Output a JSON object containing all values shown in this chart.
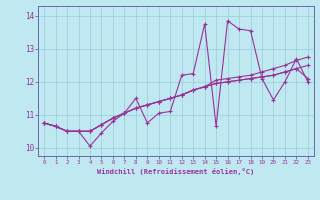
{
  "xlabel": "Windchill (Refroidissement éolien,°C)",
  "background_color": "#bfe8f0",
  "grid_color": "#99ccd8",
  "line_color": "#993399",
  "spine_color": "#6666aa",
  "xlim": [
    -0.5,
    23.5
  ],
  "ylim": [
    9.75,
    14.3
  ],
  "yticks": [
    10,
    11,
    12,
    13,
    14
  ],
  "xticks": [
    0,
    1,
    2,
    3,
    4,
    5,
    6,
    7,
    8,
    9,
    10,
    11,
    12,
    13,
    14,
    15,
    16,
    17,
    18,
    19,
    20,
    21,
    22,
    23
  ],
  "series": [
    [
      10.75,
      10.65,
      10.5,
      10.5,
      10.05,
      10.45,
      10.8,
      11.05,
      11.5,
      10.75,
      11.05,
      11.1,
      12.2,
      12.25,
      13.75,
      10.65,
      13.85,
      13.6,
      13.55,
      12.1,
      11.45,
      12.0,
      12.7,
      12.0
    ],
    [
      10.75,
      10.65,
      10.5,
      10.5,
      10.5,
      10.7,
      10.9,
      11.05,
      11.2,
      11.3,
      11.4,
      11.5,
      11.6,
      11.75,
      11.85,
      12.05,
      12.1,
      12.15,
      12.2,
      12.3,
      12.4,
      12.5,
      12.65,
      12.75
    ],
    [
      10.75,
      10.65,
      10.5,
      10.5,
      10.5,
      10.7,
      10.9,
      11.05,
      11.2,
      11.3,
      11.4,
      11.5,
      11.6,
      11.75,
      11.85,
      11.95,
      12.0,
      12.05,
      12.1,
      12.15,
      12.2,
      12.3,
      12.4,
      12.5
    ],
    [
      10.75,
      10.65,
      10.5,
      10.5,
      10.5,
      10.7,
      10.9,
      11.05,
      11.2,
      11.3,
      11.4,
      11.5,
      11.6,
      11.75,
      11.85,
      11.95,
      12.0,
      12.05,
      12.1,
      12.15,
      12.2,
      12.3,
      12.4,
      12.1
    ]
  ]
}
